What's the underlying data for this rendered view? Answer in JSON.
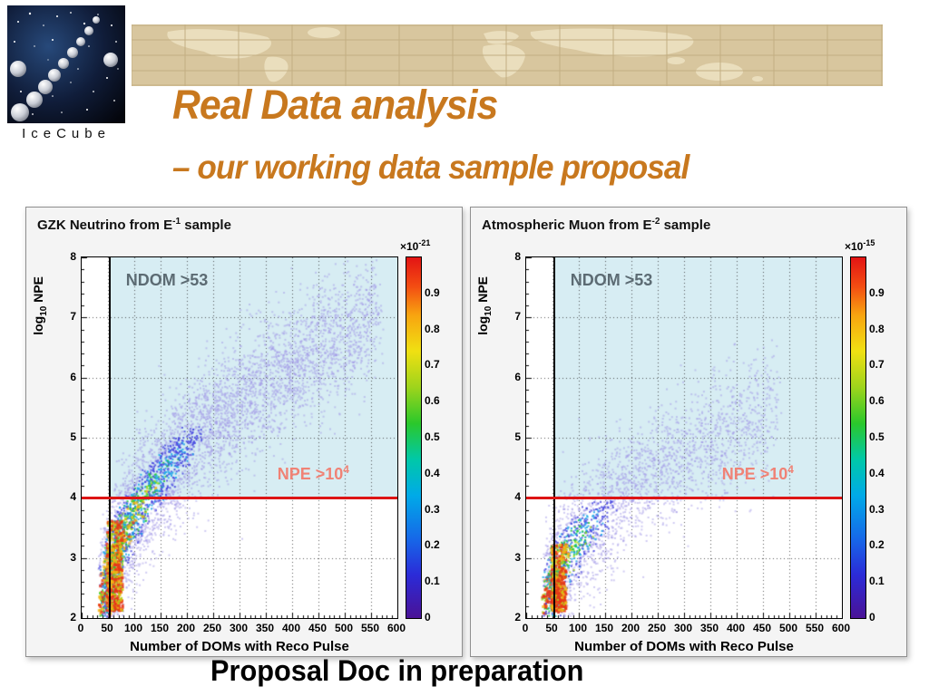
{
  "logo": {
    "caption": "IceCube"
  },
  "header": {
    "title": "Real Data analysis",
    "subtitle": "– our working data sample proposal",
    "accent_color": "#c8781e"
  },
  "footer": {
    "text": "Proposal Doc in preparation"
  },
  "chart_data": [
    {
      "type": "heatmap",
      "title_parts": {
        "prefix": "GZK Neutrino from E",
        "sup": "-1",
        "suffix": " sample"
      },
      "xlabel": "Number of DOMs with Reco Pulse",
      "ylabel_parts": {
        "prefix": "log",
        "sub": "10",
        "suffix": " NPE"
      },
      "xlim": [
        0,
        600
      ],
      "ylim": [
        2,
        8
      ],
      "xticks": [
        0,
        50,
        100,
        150,
        200,
        250,
        300,
        350,
        400,
        450,
        500,
        550,
        600
      ],
      "yticks": [
        2,
        3,
        4,
        5,
        6,
        7,
        8
      ],
      "grid": "dotted",
      "cuts": {
        "ndom_min": 53,
        "npe_log10_min": 4,
        "ndom_label": "NDOM >53",
        "npe_label_prefix": "NPE >10",
        "npe_label_sup": "4",
        "region_color": "#d7edf3",
        "ndom_line_color": "#000000",
        "npe_line_color": "#dd1515",
        "ndom_label_color": "#5c6b73",
        "npe_label_color": "#f08275"
      },
      "colorbar": {
        "min": 0,
        "max": 1,
        "ticks": [
          "0",
          "0.1",
          "0.2",
          "0.3",
          "0.4",
          "0.5",
          "0.6",
          "0.7",
          "0.8",
          "0.9"
        ],
        "scale_prefix": "×10",
        "scale_sup": "-21"
      },
      "palette": [
        "#a198e8",
        "#4848e0",
        "#18a6e8",
        "#22c83c",
        "#a6d818",
        "#f2b414",
        "#e83418"
      ],
      "density_model": {
        "seed": 7,
        "band": {
          "count": 5200,
          "t_exp": 1.75,
          "x0": 46,
          "x_span": 515,
          "x_jitter": 14,
          "y0": 2.15,
          "y_gain": 4.9,
          "y_spread": 0.5,
          "heat_falloff": 2.4
        },
        "hot": {
          "count": 520,
          "x0": 48,
          "x_span": 30,
          "y0": 2.12,
          "y_span": 1.5
        }
      }
    },
    {
      "type": "heatmap",
      "title_parts": {
        "prefix": "Atmospheric Muon from E",
        "sup": "-2",
        "suffix": " sample"
      },
      "xlabel": "Number of DOMs with Reco Pulse",
      "ylabel_parts": {
        "prefix": "log",
        "sub": "10",
        "suffix": " NPE"
      },
      "xlim": [
        0,
        600
      ],
      "ylim": [
        2,
        8
      ],
      "xticks": [
        0,
        50,
        100,
        150,
        200,
        250,
        300,
        350,
        400,
        450,
        500,
        550,
        600
      ],
      "yticks": [
        2,
        3,
        4,
        5,
        6,
        7,
        8
      ],
      "grid": "dotted",
      "cuts": {
        "ndom_min": 53,
        "npe_log10_min": 4,
        "ndom_label": "NDOM >53",
        "npe_label_prefix": "NPE >10",
        "npe_label_sup": "4",
        "region_color": "#d7edf3",
        "ndom_line_color": "#000000",
        "npe_line_color": "#dd1515",
        "ndom_label_color": "#5c6b73",
        "npe_label_color": "#f08275"
      },
      "colorbar": {
        "min": 0,
        "max": 1,
        "ticks": [
          "0",
          "0.1",
          "0.2",
          "0.3",
          "0.4",
          "0.5",
          "0.6",
          "0.7",
          "0.8",
          "0.9"
        ],
        "scale_prefix": "×10",
        "scale_sup": "-15"
      },
      "palette": [
        "#a198e8",
        "#4848e0",
        "#18a6e8",
        "#22c83c",
        "#a6d818",
        "#f2b414",
        "#e83418"
      ],
      "density_model": {
        "seed": 11,
        "band": {
          "count": 3000,
          "t_exp": 2.1,
          "x0": 46,
          "x_span": 430,
          "x_jitter": 16,
          "y0": 2.1,
          "y_gain": 3.4,
          "y_spread": 0.5,
          "heat_falloff": 3.2
        },
        "hot": {
          "count": 400,
          "x0": 48,
          "x_span": 28,
          "y0": 2.12,
          "y_span": 1.1
        }
      }
    }
  ]
}
